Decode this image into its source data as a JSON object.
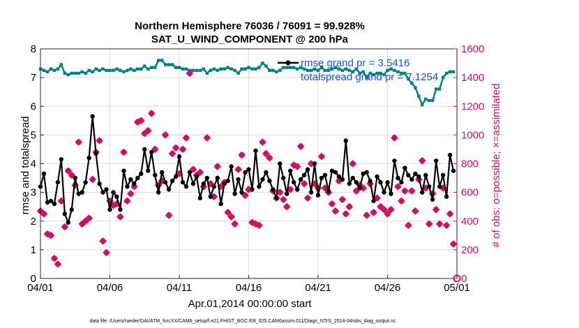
{
  "chart_data": {
    "type": "line",
    "title": "Northern Hemisphere 76036 / 76091 = 99.928%",
    "subtitle": "SAT_U_WIND_COMPONENT @ 200 hPa",
    "xlabel": "Apr.01,2014 00:00:00 start",
    "ylabel_left": "rmse and totalspread",
    "ylabel_right": "# of obs: o=possible; ×=assimilated",
    "footnote": "data file: /Users/raeder/DAI/ATM_forcXX/CAM6_setup/f.e21.FHIST_BGC.f09_025.CAM6assim.011/Diags_NTrS_2014-04/obs_diag_output.nc",
    "xlim": [
      0,
      30
    ],
    "ylim_left": [
      0,
      8
    ],
    "ylim_right": [
      0,
      1600
    ],
    "x_ticks": [
      0,
      5,
      10,
      15,
      20,
      25,
      30
    ],
    "x_tick_labels": [
      "04/01",
      "04/06",
      "04/11",
      "04/16",
      "04/21",
      "04/26",
      "05/01"
    ],
    "y_ticks_left": [
      "0",
      "1",
      "2",
      "3",
      "4",
      "5",
      "6",
      "7",
      "8"
    ],
    "y_ticks_right": [
      "0",
      "200",
      "400",
      "600",
      "800",
      "1000",
      "1200",
      "1400",
      "1600"
    ],
    "grid": true,
    "legend": [
      {
        "label": "rmse grand pr = 3.5416",
        "color": "#000000"
      },
      {
        "label": "totalspread grand pr = 7.1254",
        "color": "#008080"
      }
    ],
    "series": [
      {
        "name": "rmse",
        "axis": "left",
        "color": "#000000",
        "x": [
          0.0,
          0.25,
          0.5,
          0.75,
          1.0,
          1.25,
          1.5,
          1.75,
          2.0,
          2.25,
          2.5,
          2.75,
          3.0,
          3.25,
          3.5,
          3.75,
          4.0,
          4.25,
          4.5,
          4.75,
          5.0,
          5.25,
          5.5,
          5.75,
          6.0,
          6.25,
          6.5,
          6.75,
          7.0,
          7.25,
          7.5,
          7.75,
          8.0,
          8.25,
          8.5,
          8.75,
          9.0,
          9.25,
          9.5,
          9.75,
          10.0,
          10.25,
          10.5,
          10.75,
          11.0,
          11.25,
          11.5,
          11.75,
          12.0,
          12.25,
          12.5,
          12.75,
          13.0,
          13.25,
          13.5,
          13.75,
          14.0,
          14.25,
          14.5,
          14.75,
          15.0,
          15.25,
          15.5,
          15.75,
          16.0,
          16.25,
          16.5,
          16.75,
          17.0,
          17.25,
          17.5,
          17.75,
          18.0,
          18.25,
          18.5,
          18.75,
          19.0,
          19.25,
          19.5,
          19.75,
          20.0,
          20.25,
          20.5,
          20.75,
          21.0,
          21.25,
          21.5,
          21.75,
          22.0,
          22.25,
          22.5,
          22.75,
          23.0,
          23.25,
          23.5,
          23.75,
          24.0,
          24.25,
          24.5,
          24.75,
          25.0,
          25.25,
          25.5,
          25.75,
          26.0,
          26.25,
          26.5,
          26.75,
          27.0,
          27.25,
          27.5,
          27.75,
          28.0,
          28.25,
          28.5,
          28.75,
          29.0,
          29.25,
          29.5,
          29.75
        ],
        "values": [
          3.2,
          3.65,
          2.65,
          2.7,
          2.6,
          3.35,
          4.15,
          2.25,
          1.95,
          2.4,
          3.5,
          2.95,
          3.0,
          3.35,
          4.2,
          5.65,
          4.35,
          3.3,
          3.0,
          3.1,
          2.4,
          3.0,
          2.85,
          2.4,
          3.75,
          3.2,
          3.45,
          3.3,
          3.5,
          3.65,
          4.5,
          3.75,
          4.4,
          3.6,
          3.0,
          3.7,
          3.35,
          3.1,
          3.4,
          3.55,
          4.25,
          3.35,
          3.2,
          3.7,
          3.3,
          3.55,
          2.8,
          3.3,
          3.5,
          2.85,
          3.2,
          3.5,
          2.6,
          3.3,
          3.4,
          3.9,
          2.95,
          3.45,
          3.0,
          3.7,
          3.8,
          3.1,
          4.45,
          3.2,
          3.45,
          3.7,
          3.4,
          3.1,
          2.8,
          4.0,
          3.5,
          2.95,
          3.75,
          3.35,
          3.1,
          3.45,
          3.6,
          3.8,
          3.0,
          4.0,
          2.9,
          3.5,
          3.6,
          3.05,
          3.75,
          3.7,
          3.55,
          3.45,
          4.8,
          3.3,
          3.5,
          3.35,
          3.15,
          3.65,
          3.7,
          3.4,
          2.7,
          3.55,
          3.35,
          3.0,
          3.35,
          2.95,
          4.1,
          3.5,
          3.35,
          3.85,
          3.6,
          3.45,
          3.65,
          3.55,
          3.0,
          3.6,
          3.2,
          2.75,
          4.1,
          3.2,
          3.6,
          2.85,
          4.3,
          3.75
        ]
      },
      {
        "name": "totalspread",
        "axis": "left",
        "color": "#008080",
        "x": [
          0.0,
          0.25,
          0.5,
          0.75,
          1.0,
          1.25,
          1.5,
          1.75,
          2.0,
          2.25,
          2.5,
          2.75,
          3.0,
          3.25,
          3.5,
          3.75,
          4.0,
          4.25,
          4.5,
          4.75,
          5.0,
          5.25,
          5.5,
          5.75,
          6.0,
          6.25,
          6.5,
          6.75,
          7.0,
          7.25,
          7.5,
          7.75,
          8.0,
          8.25,
          8.5,
          8.75,
          9.0,
          9.25,
          9.5,
          9.75,
          10.0,
          10.25,
          10.5,
          10.75,
          11.0,
          11.25,
          11.5,
          11.75,
          12.0,
          12.25,
          12.5,
          12.75,
          13.0,
          13.25,
          13.5,
          13.75,
          14.0,
          14.25,
          14.5,
          14.75,
          15.0,
          15.25,
          15.5,
          15.75,
          16.0,
          16.25,
          16.5,
          16.75,
          17.0,
          17.25,
          17.5,
          17.75,
          18.0,
          18.25,
          18.5,
          18.75,
          19.0,
          19.25,
          19.5,
          19.75,
          20.0,
          20.25,
          20.5,
          20.75,
          21.0,
          21.25,
          21.5,
          21.75,
          22.0,
          22.25,
          22.5,
          22.75,
          23.0,
          23.25,
          23.5,
          23.75,
          24.0,
          24.25,
          24.5,
          24.75,
          25.0,
          25.25,
          25.5,
          25.75,
          26.0,
          26.25,
          26.5,
          26.75,
          27.0,
          27.25,
          27.5,
          27.75,
          28.0,
          28.25,
          28.5,
          28.75,
          29.0,
          29.25,
          29.5,
          29.75
        ],
        "values": [
          7.3,
          7.25,
          7.2,
          7.3,
          7.25,
          7.3,
          7.45,
          7.15,
          7.1,
          7.15,
          7.15,
          7.15,
          7.2,
          7.15,
          7.25,
          7.2,
          7.3,
          7.25,
          7.3,
          7.25,
          7.25,
          7.25,
          7.3,
          7.25,
          7.2,
          7.25,
          7.3,
          7.25,
          7.3,
          7.3,
          7.4,
          7.3,
          7.35,
          7.35,
          7.6,
          7.6,
          7.45,
          7.45,
          7.45,
          7.35,
          7.35,
          7.3,
          7.3,
          7.25,
          7.25,
          7.25,
          7.25,
          7.3,
          7.15,
          7.25,
          7.3,
          7.25,
          7.3,
          7.3,
          7.35,
          7.3,
          7.25,
          7.15,
          7.3,
          7.3,
          7.35,
          7.3,
          7.3,
          7.35,
          7.5,
          7.4,
          7.25,
          7.25,
          7.2,
          7.25,
          7.35,
          7.35,
          7.35,
          7.35,
          7.3,
          7.35,
          7.3,
          7.25,
          7.25,
          7.3,
          7.25,
          7.35,
          7.25,
          7.25,
          7.3,
          7.35,
          7.3,
          7.25,
          7.3,
          7.25,
          7.2,
          7.3,
          7.15,
          7.2,
          7.0,
          7.15,
          7.1,
          7.15,
          7.15,
          7.1,
          7.25,
          7.3,
          7.25,
          7.2,
          7.15,
          7.15,
          6.95,
          6.8,
          6.65,
          6.35,
          6.05,
          6.25,
          6.2,
          6.2,
          6.6,
          6.6,
          7.0,
          7.15,
          7.2,
          7.2
        ]
      }
    ],
    "scatter_series": [
      {
        "name": "possible",
        "axis": "right",
        "marker": "o",
        "color": "#d0115b",
        "x": [
          0.0,
          0.25,
          0.5,
          0.75,
          1.0,
          1.25,
          1.5,
          1.75,
          2.0,
          2.25,
          2.5,
          2.75,
          3.0,
          3.25,
          3.5,
          3.75,
          4.0,
          4.25,
          4.5,
          4.75,
          5.0,
          5.25,
          5.5,
          5.75,
          6.0,
          6.25,
          6.5,
          6.75,
          7.0,
          7.25,
          7.5,
          7.75,
          8.0,
          8.25,
          8.5,
          8.75,
          9.0,
          9.25,
          9.5,
          9.75,
          10.0,
          10.25,
          10.5,
          10.75,
          11.0,
          11.25,
          11.5,
          11.75,
          12.0,
          12.25,
          12.5,
          12.75,
          13.0,
          13.25,
          13.5,
          13.75,
          14.0,
          14.25,
          14.5,
          14.75,
          15.0,
          15.25,
          15.5,
          15.75,
          16.0,
          16.25,
          16.5,
          16.75,
          17.0,
          17.25,
          17.5,
          17.75,
          18.0,
          18.25,
          18.5,
          18.75,
          19.0,
          19.25,
          19.5,
          19.75,
          20.0,
          20.25,
          20.5,
          20.75,
          21.0,
          21.25,
          21.5,
          21.75,
          22.0,
          22.25,
          22.5,
          22.75,
          23.0,
          23.25,
          23.5,
          23.75,
          24.0,
          24.25,
          24.5,
          24.75,
          25.0,
          25.25,
          25.5,
          25.75,
          26.0,
          26.25,
          26.5,
          26.75,
          27.0,
          27.25,
          27.5,
          27.75,
          28.0,
          28.25,
          28.5,
          28.75,
          29.0,
          29.25,
          29.5,
          29.75
        ],
        "values": [
          470,
          450,
          310,
          300,
          140,
          100,
          540,
          360,
          750,
          720,
          650,
          950,
          380,
          400,
          420,
          690,
          880,
          960,
          260,
          180,
          540,
          510,
          520,
          430,
          880,
          540,
          590,
          640,
          1090,
          1100,
          1010,
          1030,
          1150,
          900,
          650,
          680,
          1000,
          440,
          870,
          910,
          730,
          900,
          980,
          1430,
          760,
          720,
          740,
          640,
          980,
          660,
          570,
          780,
          640,
          670,
          460,
          430,
          380,
          760,
          860,
          580,
          620,
          390,
          380,
          370,
          950,
          870,
          840,
          610,
          560,
          600,
          550,
          500,
          620,
          790,
          780,
          920,
          660,
          560,
          800,
          660,
          630,
          850,
          630,
          600,
          520,
          470,
          680,
          550,
          450,
          500,
          800,
          610,
          650,
          630,
          440,
          660,
          460,
          560,
          500,
          480,
          450,
          480,
          980,
          640,
          540,
          610,
          370,
          610,
          470,
          690,
          820,
          630,
          380,
          590,
          480,
          380,
          630,
          370,
          450,
          240
        ],
        "note": "approximate values read from markers"
      },
      {
        "name": "assimilated",
        "axis": "right",
        "marker": "×",
        "color": "#d0115b",
        "x": [
          0.0,
          0.25,
          0.5,
          0.75,
          1.0,
          1.25,
          1.5,
          1.75,
          2.0,
          2.25,
          2.5,
          2.75,
          3.0,
          3.25,
          3.5,
          3.75,
          4.0,
          4.25,
          4.5,
          4.75,
          5.0,
          5.25,
          5.5,
          5.75,
          6.0,
          6.25,
          6.5,
          6.75,
          7.0,
          7.25,
          7.5,
          7.75,
          8.0,
          8.25,
          8.5,
          8.75,
          9.0,
          9.25,
          9.5,
          9.75,
          10.0,
          10.25,
          10.5,
          10.75,
          11.0,
          11.25,
          11.5,
          11.75,
          12.0,
          12.25,
          12.5,
          12.75,
          13.0,
          13.25,
          13.5,
          13.75,
          14.0,
          14.25,
          14.5,
          14.75,
          15.0,
          15.25,
          15.5,
          15.75,
          16.0,
          16.25,
          16.5,
          16.75,
          17.0,
          17.25,
          17.5,
          17.75,
          18.0,
          18.25,
          18.5,
          18.75,
          19.0,
          19.25,
          19.5,
          19.75,
          20.0,
          20.25,
          20.5,
          20.75,
          21.0,
          21.25,
          21.5,
          21.75,
          22.0,
          22.25,
          22.5,
          22.75,
          23.0,
          23.25,
          23.5,
          23.75,
          24.0,
          24.25,
          24.5,
          24.75,
          25.0,
          25.25,
          25.5,
          25.75,
          26.0,
          26.25,
          26.5,
          26.75,
          27.0,
          27.25,
          27.5,
          27.75,
          28.0,
          28.25,
          28.5,
          28.75,
          29.0,
          29.25,
          29.5,
          29.75
        ],
        "values": [
          470,
          450,
          310,
          300,
          140,
          100,
          540,
          360,
          750,
          720,
          650,
          950,
          380,
          400,
          420,
          690,
          880,
          960,
          260,
          180,
          540,
          510,
          520,
          430,
          880,
          540,
          590,
          640,
          1090,
          1100,
          1010,
          1030,
          1150,
          900,
          650,
          680,
          1000,
          440,
          870,
          910,
          730,
          900,
          980,
          1430,
          760,
          720,
          740,
          640,
          980,
          660,
          570,
          780,
          640,
          670,
          460,
          430,
          380,
          760,
          860,
          580,
          620,
          390,
          380,
          370,
          950,
          870,
          840,
          610,
          560,
          600,
          550,
          500,
          620,
          790,
          780,
          920,
          660,
          560,
          800,
          660,
          630,
          850,
          630,
          600,
          520,
          470,
          680,
          550,
          450,
          500,
          800,
          610,
          650,
          630,
          440,
          660,
          460,
          560,
          500,
          480,
          450,
          480,
          980,
          640,
          540,
          610,
          370,
          610,
          470,
          690,
          820,
          630,
          380,
          590,
          480,
          380,
          630,
          370,
          450,
          240
        ]
      }
    ]
  }
}
